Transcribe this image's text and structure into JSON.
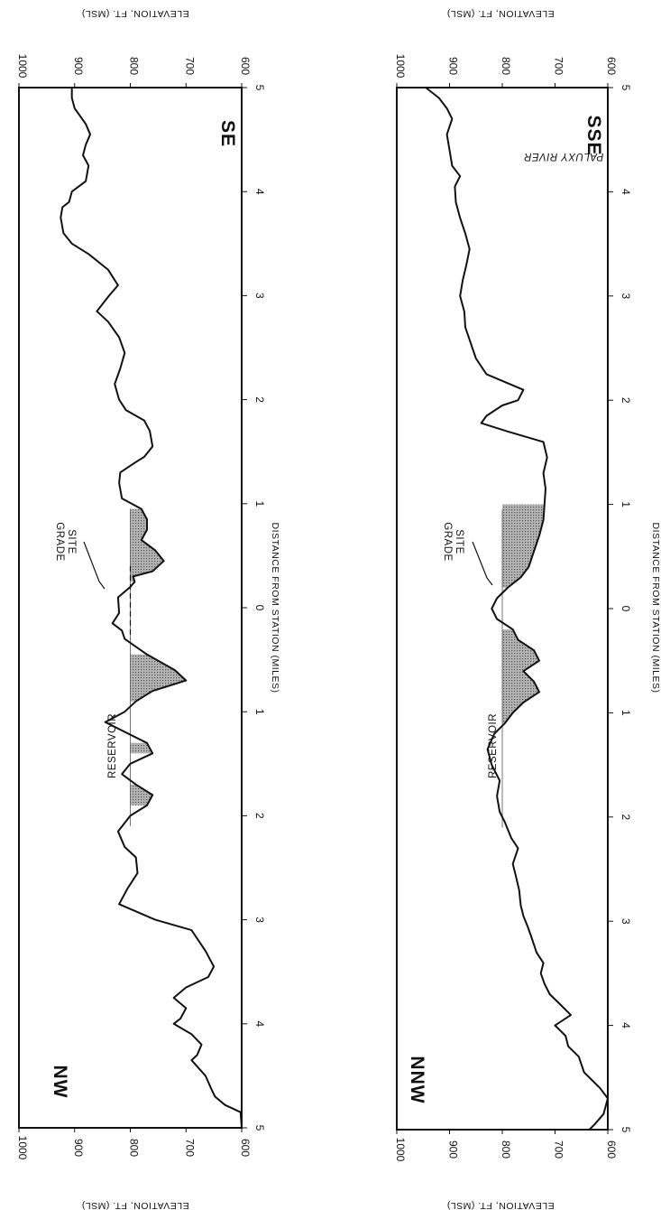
{
  "colors": {
    "line": "#111111",
    "reservoir_fill": "#8a8a8a",
    "frame": "#111111"
  },
  "chart_data": [
    {
      "type": "area",
      "profile": "SE",
      "direction_labels": {
        "start": "SE",
        "end": "NW"
      },
      "xlabel": "DISTANCE FROM STATION (MILES)",
      "ylabel": "ELEVATION, FT. (MSL)",
      "xtick_labels": [
        "5",
        "4",
        "3",
        "2",
        "1",
        "0",
        "1",
        "2",
        "3",
        "4",
        "5"
      ],
      "ytick_labels": [
        "1000",
        "900",
        "800",
        "700",
        "600"
      ],
      "ylim": [
        600,
        1000
      ],
      "annotations": {
        "site_grade": "SITE GRADE",
        "reservoir": "RESERVOIR"
      },
      "site_grade_elevation": 800,
      "reservoir_level": 800,
      "series": [
        {
          "values": [
            [
              -5.0,
              600
            ],
            [
              -4.85,
              602
            ],
            [
              -4.78,
              630
            ],
            [
              -4.7,
              648
            ],
            [
              -4.62,
              655
            ],
            [
              -4.5,
              665
            ],
            [
              -4.35,
              690
            ],
            [
              -4.3,
              680
            ],
            [
              -4.2,
              672
            ],
            [
              -4.1,
              690
            ],
            [
              -4.0,
              722
            ],
            [
              -3.95,
              710
            ],
            [
              -3.85,
              700
            ],
            [
              -3.75,
              722
            ],
            [
              -3.65,
              700
            ],
            [
              -3.55,
              660
            ],
            [
              -3.45,
              650
            ],
            [
              -3.3,
              665
            ],
            [
              -3.1,
              690
            ],
            [
              -3.0,
              755
            ],
            [
              -2.85,
              820
            ],
            [
              -2.7,
              805
            ],
            [
              -2.55,
              787
            ],
            [
              -2.4,
              790
            ],
            [
              -2.3,
              810
            ],
            [
              -2.15,
              822
            ],
            [
              -2.0,
              800
            ],
            [
              -1.9,
              770
            ],
            [
              -1.8,
              760
            ],
            [
              -1.7,
              790
            ],
            [
              -1.6,
              815
            ],
            [
              -1.5,
              800
            ],
            [
              -1.4,
              760
            ],
            [
              -1.3,
              770
            ],
            [
              -1.1,
              845
            ],
            [
              -1.0,
              810
            ],
            [
              -0.9,
              790
            ],
            [
              -0.8,
              760
            ],
            [
              -0.7,
              700
            ],
            [
              -0.6,
              720
            ],
            [
              -0.45,
              770
            ],
            [
              -0.3,
              810
            ],
            [
              -0.22,
              815
            ],
            [
              -0.15,
              832
            ],
            [
              -0.05,
              820
            ],
            [
              0.1,
              822
            ],
            [
              0.2,
              800
            ],
            [
              0.25,
              792
            ],
            [
              0.3,
              795
            ],
            [
              0.35,
              760
            ],
            [
              0.45,
              740
            ],
            [
              0.55,
              755
            ],
            [
              0.65,
              780
            ],
            [
              0.75,
              770
            ],
            [
              0.85,
              770
            ],
            [
              0.95,
              780
            ],
            [
              1.05,
              815
            ],
            [
              1.2,
              820
            ],
            [
              1.3,
              818
            ],
            [
              1.4,
              790
            ],
            [
              1.45,
              775
            ],
            [
              1.55,
              760
            ],
            [
              1.7,
              765
            ],
            [
              1.8,
              775
            ],
            [
              1.9,
              808
            ],
            [
              2.0,
              820
            ],
            [
              2.15,
              828
            ],
            [
              2.3,
              818
            ],
            [
              2.45,
              810
            ],
            [
              2.6,
              820
            ],
            [
              2.75,
              840
            ],
            [
              2.85,
              860
            ],
            [
              3.0,
              838
            ],
            [
              3.1,
              822
            ],
            [
              3.25,
              840
            ],
            [
              3.4,
              875
            ],
            [
              3.5,
              905
            ],
            [
              3.6,
              920
            ],
            [
              3.75,
              925
            ],
            [
              3.85,
              922
            ],
            [
              3.9,
              910
            ],
            [
              4.0,
              905
            ],
            [
              4.1,
              880
            ],
            [
              4.25,
              875
            ],
            [
              4.35,
              885
            ],
            [
              4.45,
              880
            ],
            [
              4.55,
              872
            ],
            [
              4.65,
              880
            ],
            [
              4.8,
              900
            ],
            [
              4.9,
              905
            ],
            [
              5.0,
              905
            ]
          ]
        }
      ]
    },
    {
      "type": "area",
      "profile": "SSE",
      "direction_labels": {
        "start": "SSE",
        "end": "NNW"
      },
      "xlabel": "DISTANCE FROM STATION (MILES)",
      "ylabel": "ELEVATION, FT. (MSL)",
      "xtick_labels": [
        "5",
        "4",
        "3",
        "2",
        "1",
        "0",
        "1",
        "2",
        "3",
        "4",
        "5"
      ],
      "ytick_labels": [
        "1000",
        "900",
        "800",
        "700",
        "600"
      ],
      "ylim": [
        600,
        1000
      ],
      "annotations": {
        "site_grade": "SITE GRADE",
        "reservoir": "RESERVOIR",
        "river": "PALUXY RIVER"
      },
      "site_grade_elevation": 800,
      "reservoir_level": 800,
      "series": [
        {
          "values": [
            [
              -5.0,
              635
            ],
            [
              -4.95,
              625
            ],
            [
              -4.85,
              608
            ],
            [
              -4.7,
              600
            ],
            [
              -4.6,
              615
            ],
            [
              -4.45,
              645
            ],
            [
              -4.3,
              655
            ],
            [
              -4.2,
              675
            ],
            [
              -4.1,
              680
            ],
            [
              -4.0,
              700
            ],
            [
              -3.9,
              670
            ],
            [
              -3.8,
              690
            ],
            [
              -3.7,
              710
            ],
            [
              -3.6,
              720
            ],
            [
              -3.5,
              727
            ],
            [
              -3.4,
              722
            ],
            [
              -3.3,
              735
            ],
            [
              -3.15,
              745
            ],
            [
              -3.05,
              752
            ],
            [
              -2.95,
              760
            ],
            [
              -2.85,
              765
            ],
            [
              -2.7,
              768
            ],
            [
              -2.55,
              775
            ],
            [
              -2.45,
              780
            ],
            [
              -2.3,
              770
            ],
            [
              -2.2,
              783
            ],
            [
              -2.05,
              795
            ],
            [
              -1.95,
              805
            ],
            [
              -1.8,
              810
            ],
            [
              -1.65,
              805
            ],
            [
              -1.5,
              820
            ],
            [
              -1.35,
              828
            ],
            [
              -1.2,
              815
            ],
            [
              -1.1,
              795
            ],
            [
              -1.0,
              780
            ],
            [
              -0.9,
              760
            ],
            [
              -0.8,
              730
            ],
            [
              -0.7,
              740
            ],
            [
              -0.6,
              760
            ],
            [
              -0.5,
              730
            ],
            [
              -0.4,
              740
            ],
            [
              -0.3,
              770
            ],
            [
              -0.2,
              780
            ],
            [
              -0.1,
              810
            ],
            [
              0.0,
              820
            ],
            [
              0.1,
              810
            ],
            [
              0.2,
              790
            ],
            [
              0.3,
              765
            ],
            [
              0.4,
              750
            ],
            [
              0.55,
              740
            ],
            [
              0.7,
              730
            ],
            [
              0.85,
              722
            ],
            [
              1.0,
              720
            ],
            [
              1.15,
              718
            ],
            [
              1.3,
              722
            ],
            [
              1.45,
              715
            ],
            [
              1.6,
              722
            ],
            [
              1.7,
              790
            ],
            [
              1.78,
              840
            ],
            [
              1.85,
              830
            ],
            [
              1.95,
              800
            ],
            [
              2.0,
              770
            ],
            [
              2.1,
              760
            ],
            [
              2.25,
              830
            ],
            [
              2.4,
              850
            ],
            [
              2.55,
              860
            ],
            [
              2.7,
              870
            ],
            [
              2.85,
              872
            ],
            [
              3.0,
              880
            ],
            [
              3.15,
              875
            ],
            [
              3.3,
              868
            ],
            [
              3.45,
              862
            ],
            [
              3.6,
              870
            ],
            [
              3.75,
              880
            ],
            [
              3.9,
              888
            ],
            [
              4.05,
              890
            ],
            [
              4.15,
              880
            ],
            [
              4.25,
              895
            ],
            [
              4.4,
              900
            ],
            [
              4.55,
              905
            ],
            [
              4.7,
              895
            ],
            [
              4.8,
              905
            ],
            [
              4.9,
              920
            ],
            [
              5.0,
              945
            ]
          ]
        }
      ]
    }
  ]
}
